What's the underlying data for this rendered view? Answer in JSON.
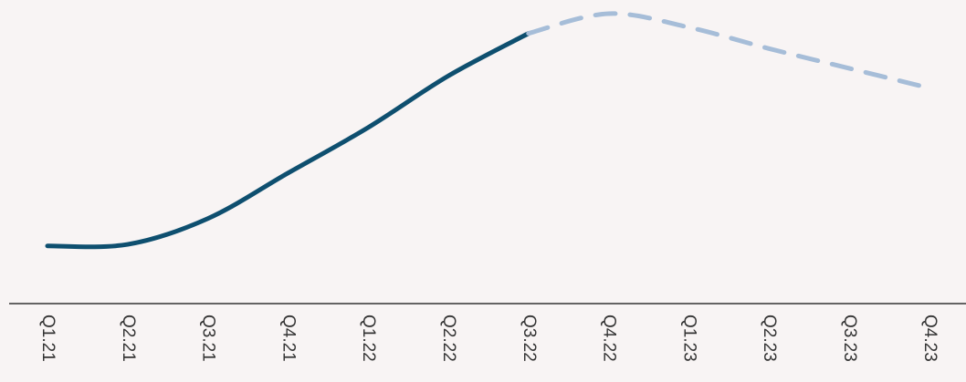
{
  "chart_data": {
    "type": "line",
    "categories": [
      "Q1.21",
      "Q2.21",
      "Q3.21",
      "Q4.21",
      "Q1.22",
      "Q2.22",
      "Q3.22",
      "Q4.22",
      "Q1.23",
      "Q2.23",
      "Q3.23",
      "Q4.23"
    ],
    "series": [
      {
        "color": "#0e4f6f",
        "dashed": false,
        "values": [
          19,
          19.5,
          28,
          43,
          58,
          75,
          89,
          null,
          null,
          null,
          null,
          null
        ]
      },
      {
        "color": "#a6bdd8",
        "dashed": true,
        "values": [
          null,
          null,
          null,
          null,
          null,
          null,
          89,
          95.5,
          91,
          84,
          77.5,
          71
        ]
      }
    ],
    "ylim": [
      0,
      100
    ]
  }
}
